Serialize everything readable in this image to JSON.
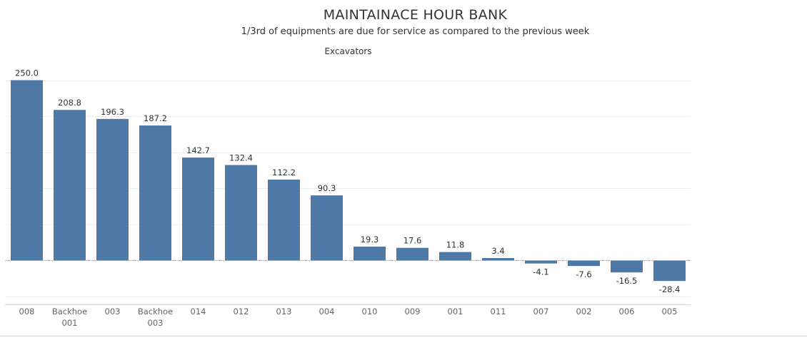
{
  "title": "MAINTAINACE HOUR BANK",
  "subtitle": "1/3rd of equipments are due for service as compared to the previous week",
  "chart_data": {
    "type": "bar",
    "title": "MAINTAINACE HOUR BANK",
    "subtitle": "1/3rd of equipments are due for service as compared to the previous week",
    "panel_header": "Excavators",
    "categories": [
      "008",
      "Backhoe 001",
      "003",
      "Backhoe 003",
      "014",
      "012",
      "013",
      "004",
      "010",
      "009",
      "001",
      "011",
      "007",
      "002",
      "006",
      "005"
    ],
    "values": [
      250.0,
      208.8,
      196.3,
      187.2,
      142.7,
      132.4,
      112.2,
      90.3,
      19.3,
      17.6,
      11.8,
      3.4,
      -4.1,
      -7.6,
      -16.5,
      -28.4
    ],
    "value_labels": [
      "250.0",
      "208.8",
      "196.3",
      "187.2",
      "142.7",
      "132.4",
      "112.2",
      "90.3",
      "19.3",
      "17.6",
      "11.8",
      "3.4",
      "-4.1",
      "-7.6",
      "-16.5",
      "-28.4"
    ],
    "xlabel": "",
    "ylabel": "",
    "ylim": [
      -50,
      250
    ],
    "gridlines": [
      -50,
      50,
      100,
      150,
      200,
      250
    ],
    "grid": true,
    "legend": "none",
    "bar_color": "#4e79a7"
  }
}
